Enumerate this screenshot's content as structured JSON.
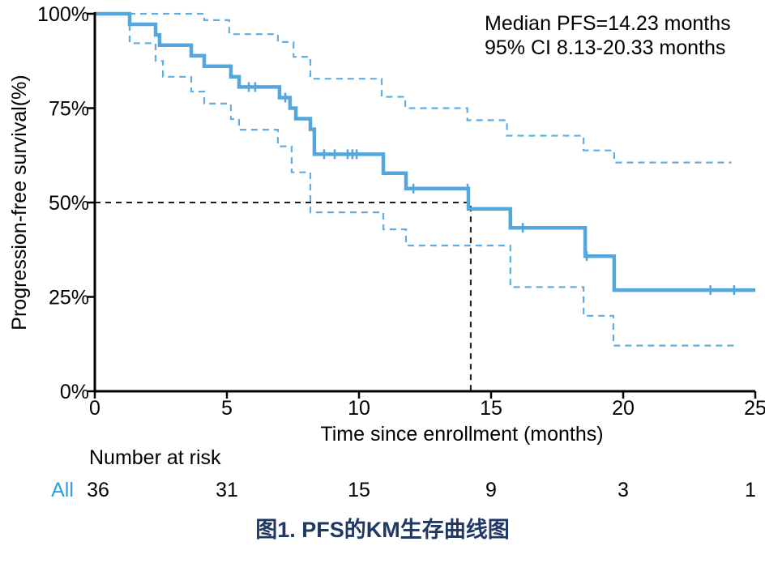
{
  "annotation": {
    "line1": "Median PFS=14.23 months",
    "line2": "95% CI 8.13-20.33 months"
  },
  "risk_table": {
    "header": "Number at risk",
    "group_label": "All",
    "times": [
      0,
      5,
      10,
      15,
      20,
      25
    ],
    "values": [
      "36",
      "31",
      "15",
      "9",
      "3",
      "1"
    ]
  },
  "caption": "图1. PFS的KM生存曲线图",
  "colors": {
    "curve": "#54A7DC",
    "ci_curve": "#5FAEE3",
    "reference_line": "#1c1c1c",
    "axis": "#000000",
    "risk_group_label": "#2F9FE0",
    "caption": "#1F3864"
  },
  "chart_data": {
    "type": "line",
    "subtype": "kaplan-meier-step",
    "title": "",
    "xlabel": "Time since enrollment (months)",
    "ylabel": "Progression-free survival(%)",
    "xlim": [
      0,
      25
    ],
    "ylim": [
      0,
      100
    ],
    "xticks": [
      0,
      5,
      10,
      15,
      20,
      25
    ],
    "yticks": [
      0,
      25,
      50,
      75,
      100
    ],
    "ytick_labels": [
      "0%",
      "25%",
      "50%",
      "75%",
      "100%"
    ],
    "grid": false,
    "legend_position": "none",
    "median_pfs_months": 14.23,
    "ci_95_months": [
      8.13,
      20.33
    ],
    "reference_lines": {
      "horizontal_pct": 50,
      "vertical_month": 14.23
    },
    "series": [
      {
        "name": "KM estimate",
        "style": "solid",
        "end_time": 25.0,
        "steps": [
          [
            0,
            100
          ],
          [
            1.32,
            97.2
          ],
          [
            2.3,
            94.4
          ],
          [
            2.45,
            91.7
          ],
          [
            3.65,
            88.9
          ],
          [
            4.14,
            86.1
          ],
          [
            5.15,
            83.3
          ],
          [
            5.46,
            80.6
          ],
          [
            6.99,
            77.8
          ],
          [
            7.39,
            75.0
          ],
          [
            7.61,
            72.2
          ],
          [
            8.16,
            69.4
          ],
          [
            8.31,
            62.8
          ],
          [
            10.92,
            57.8
          ],
          [
            11.78,
            53.7
          ],
          [
            14.14,
            48.3
          ],
          [
            15.73,
            43.3
          ],
          [
            18.56,
            35.8
          ],
          [
            19.66,
            26.8
          ]
        ]
      },
      {
        "name": "upper 95% CI",
        "style": "dashed",
        "end_time": 24.1,
        "steps": [
          [
            0,
            100
          ],
          [
            4.14,
            98.3
          ],
          [
            5.09,
            94.6
          ],
          [
            6.93,
            92.5
          ],
          [
            7.52,
            88.6
          ],
          [
            8.16,
            82.8
          ],
          [
            10.86,
            78.0
          ],
          [
            11.75,
            75.0
          ],
          [
            14.1,
            71.8
          ],
          [
            15.6,
            67.7
          ],
          [
            18.5,
            63.8
          ],
          [
            19.66,
            60.6
          ]
        ]
      },
      {
        "name": "lower 95% CI",
        "style": "dashed",
        "end_time": 24.2,
        "steps": [
          [
            0,
            100
          ],
          [
            1.32,
            92.2
          ],
          [
            2.3,
            87.5
          ],
          [
            2.58,
            83.3
          ],
          [
            3.65,
            79.4
          ],
          [
            4.14,
            76.2
          ],
          [
            5.15,
            72.1
          ],
          [
            5.46,
            69.3
          ],
          [
            6.93,
            64.9
          ],
          [
            7.45,
            58.0
          ],
          [
            8.16,
            47.4
          ],
          [
            10.92,
            42.9
          ],
          [
            11.78,
            38.6
          ],
          [
            15.73,
            27.6
          ],
          [
            18.5,
            20.0
          ],
          [
            19.63,
            12.1
          ]
        ]
      }
    ],
    "censor_marks": [
      [
        5.83,
        80.6
      ],
      [
        6.07,
        80.6
      ],
      [
        7.21,
        77.8
      ],
      [
        8.68,
        62.8
      ],
      [
        9.08,
        62.8
      ],
      [
        9.57,
        62.8
      ],
      [
        9.75,
        62.8
      ],
      [
        9.91,
        62.8
      ],
      [
        12.06,
        53.7
      ],
      [
        14.11,
        53.7
      ],
      [
        16.2,
        43.3
      ],
      [
        18.62,
        35.8
      ],
      [
        23.3,
        26.8
      ],
      [
        24.2,
        26.8
      ]
    ]
  }
}
